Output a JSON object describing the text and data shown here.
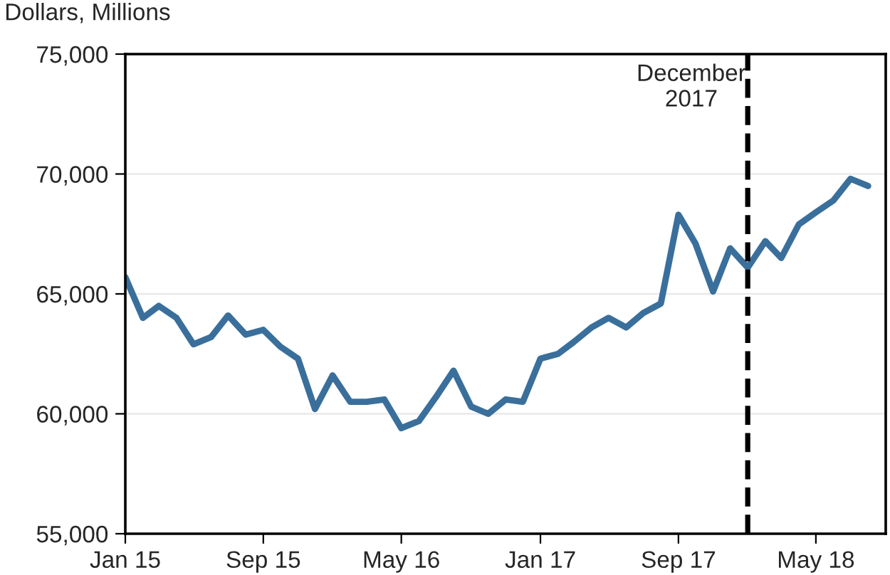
{
  "chart_data": {
    "type": "line",
    "ylabel": "Dollars, Millions",
    "x": [
      "2015-01",
      "2015-02",
      "2015-03",
      "2015-04",
      "2015-05",
      "2015-06",
      "2015-07",
      "2015-08",
      "2015-09",
      "2015-10",
      "2015-11",
      "2015-12",
      "2016-01",
      "2016-02",
      "2016-03",
      "2016-04",
      "2016-05",
      "2016-06",
      "2016-07",
      "2016-08",
      "2016-09",
      "2016-10",
      "2016-11",
      "2016-12",
      "2017-01",
      "2017-02",
      "2017-03",
      "2017-04",
      "2017-05",
      "2017-06",
      "2017-07",
      "2017-08",
      "2017-09",
      "2017-10",
      "2017-11",
      "2017-12",
      "2018-01",
      "2018-02",
      "2018-03",
      "2018-04",
      "2018-05",
      "2018-06",
      "2018-07",
      "2018-08"
    ],
    "series": [
      {
        "color": "#3a6f9c",
        "values": [
          65700,
          64000,
          64500,
          64000,
          62900,
          63200,
          64100,
          63300,
          63500,
          62800,
          62300,
          60200,
          61600,
          60500,
          60500,
          60600,
          59400,
          59700,
          60700,
          61800,
          60300,
          60000,
          60600,
          60500,
          62300,
          62500,
          63000,
          63600,
          64000,
          63600,
          64200,
          64600,
          68300,
          67100,
          65100,
          66900,
          66100,
          67200,
          66500,
          67900,
          68400,
          68900,
          69800,
          69500
        ]
      }
    ],
    "xlim": [
      "2015-01",
      "2018-09"
    ],
    "xticks": [
      {
        "value": "2015-01",
        "label": "Jan 15"
      },
      {
        "value": "2015-09",
        "label": "Sep 15"
      },
      {
        "value": "2016-05",
        "label": "May 16"
      },
      {
        "value": "2017-01",
        "label": "Jan 17"
      },
      {
        "value": "2017-09",
        "label": "Sep 17"
      },
      {
        "value": "2018-05",
        "label": "May 18"
      }
    ],
    "ylim": [
      55000,
      75000
    ],
    "yticks": [
      {
        "value": 55000,
        "label": "55,000"
      },
      {
        "value": 60000,
        "label": "60,000"
      },
      {
        "value": 65000,
        "label": "65,000"
      },
      {
        "value": 70000,
        "label": "70,000"
      },
      {
        "value": 75000,
        "label": "75,000"
      }
    ],
    "ref_lines": [
      {
        "axis": "x",
        "value": "2018-01",
        "label": "December\n2017",
        "color": "#000000",
        "line_style": "dashed"
      }
    ],
    "grid": "y",
    "legend": false,
    "marker": "none",
    "line_style": "solid"
  }
}
